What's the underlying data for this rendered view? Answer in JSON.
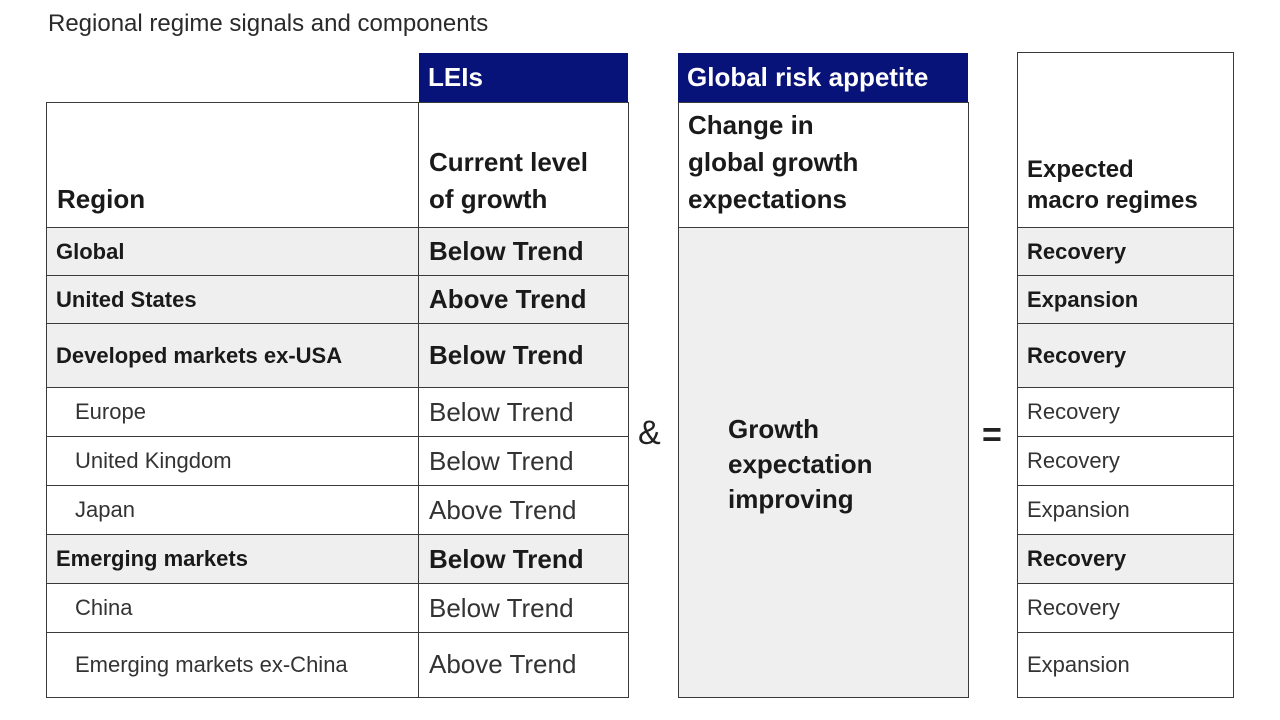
{
  "title": "Regional regime signals and components",
  "headers": {
    "leis": "LEIs",
    "global_risk": "Global risk appetite",
    "region_col": "Region",
    "lei_col_line1": "Current level",
    "lei_col_line2": "of growth",
    "risk_col_line1": "Change in",
    "risk_col_line2": "global growth",
    "risk_col_line3": "expectations",
    "regime_col_line1": "Expected",
    "regime_col_line2": "macro regimes"
  },
  "operators": {
    "and": "&",
    "equals": "="
  },
  "risk_appetite_value": {
    "line1": "Growth",
    "line2": "expectation",
    "line3": "improving"
  },
  "rows": [
    {
      "region": "Global",
      "lei": "Below Trend",
      "regime": "Recovery",
      "level": "main"
    },
    {
      "region": "United States",
      "lei": "Above Trend",
      "regime": "Expansion",
      "level": "main"
    },
    {
      "region": "Developed markets ex-USA",
      "lei": "Below Trend",
      "regime": "Recovery",
      "level": "main"
    },
    {
      "region": "Europe",
      "lei": "Below Trend",
      "regime": "Recovery",
      "level": "sub"
    },
    {
      "region": "United Kingdom",
      "lei": "Below Trend",
      "regime": "Recovery",
      "level": "sub"
    },
    {
      "region": "Japan",
      "lei": "Above Trend",
      "regime": "Expansion",
      "level": "sub"
    },
    {
      "region": "Emerging markets",
      "lei": "Below Trend",
      "regime": "Recovery",
      "level": "main"
    },
    {
      "region": "China",
      "lei": "Below Trend",
      "regime": "Recovery",
      "level": "sub"
    },
    {
      "region": "Emerging markets ex-China",
      "lei": "Above Trend",
      "regime": "Expansion",
      "level": "sub"
    }
  ]
}
